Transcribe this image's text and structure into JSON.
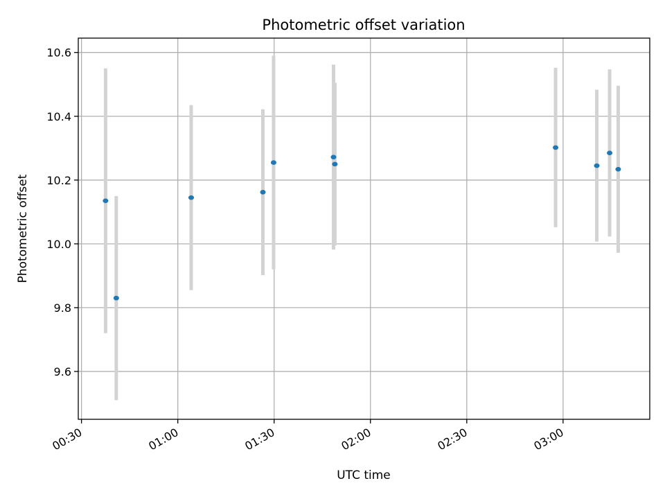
{
  "chart_data": {
    "type": "scatter",
    "title": "Photometric offset variation",
    "xlabel": "UTC time",
    "ylabel": "Photometric offset",
    "x_ticks": [
      "00:30",
      "01:00",
      "01:30",
      "02:00",
      "02:30",
      "03:00"
    ],
    "y_ticks": [
      "9.6",
      "9.8",
      "10.0",
      "10.2",
      "10.4",
      "10.6"
    ],
    "xlim": [
      "00:29",
      "03:27"
    ],
    "ylim": [
      9.45,
      10.645
    ],
    "grid": true,
    "point_color": "#1f77b4",
    "errorbar_color": "#d3d3d3",
    "points": [
      {
        "x": "00:37:30",
        "y": 10.135,
        "yerr": 0.415
      },
      {
        "x": "00:40:50",
        "y": 9.83,
        "yerr": 0.32
      },
      {
        "x": "01:04:10",
        "y": 10.145,
        "yerr": 0.29
      },
      {
        "x": "01:26:30",
        "y": 10.162,
        "yerr": 0.26
      },
      {
        "x": "01:29:50",
        "y": 10.255,
        "yerr": 0.335
      },
      {
        "x": "01:48:30",
        "y": 10.272,
        "yerr": 0.29
      },
      {
        "x": "01:48:55",
        "y": 10.25,
        "yerr": 0.255
      },
      {
        "x": "02:57:40",
        "y": 10.302,
        "yerr": 0.25
      },
      {
        "x": "03:10:30",
        "y": 10.245,
        "yerr": 0.238
      },
      {
        "x": "03:14:30",
        "y": 10.285,
        "yerr": 0.262
      },
      {
        "x": "03:17:10",
        "y": 10.234,
        "yerr": 0.262
      }
    ]
  }
}
